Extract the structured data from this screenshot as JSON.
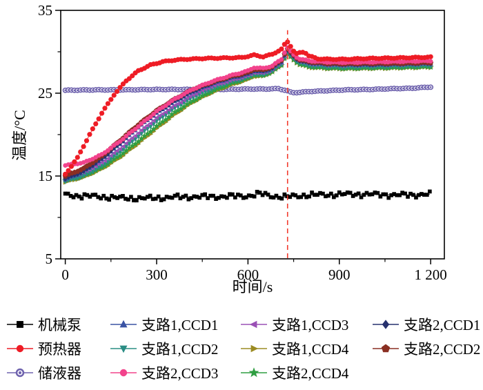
{
  "chart_data": {
    "type": "line",
    "title": "",
    "xlabel": "时间/s",
    "ylabel": "温度/°C",
    "xlim": [
      -15,
      1245
    ],
    "ylim": [
      5,
      35
    ],
    "grid": false,
    "legend_position": "bottom",
    "xticks": {
      "major": [
        0,
        300,
        600,
        900,
        1200
      ],
      "labels": [
        "0",
        "300",
        "600",
        "900",
        "1 200"
      ],
      "minor": [
        150,
        450,
        750,
        1050
      ]
    },
    "yticks": {
      "major": [
        5,
        15,
        25,
        35
      ],
      "labels": [
        "5",
        "15",
        "25",
        "35"
      ],
      "minor": [
        10,
        20,
        30
      ]
    },
    "vline": {
      "x": 730,
      "color": "#f2392c",
      "style": "dashed"
    },
    "series": [
      {
        "key": "pump",
        "name": "机械泵",
        "color": "#000000",
        "marker": "square",
        "points": [
          [
            0,
            12.7
          ],
          [
            60,
            12.6
          ],
          [
            120,
            12.5
          ],
          [
            180,
            12.35
          ],
          [
            240,
            12.3
          ],
          [
            300,
            12.35
          ],
          [
            360,
            12.45
          ],
          [
            420,
            12.5
          ],
          [
            480,
            12.5
          ],
          [
            540,
            12.55
          ],
          [
            600,
            12.6
          ],
          [
            640,
            12.85
          ],
          [
            680,
            12.6
          ],
          [
            720,
            12.45
          ],
          [
            760,
            12.6
          ],
          [
            800,
            12.7
          ],
          [
            860,
            12.75
          ],
          [
            920,
            12.8
          ],
          [
            980,
            12.8
          ],
          [
            1040,
            12.75
          ],
          [
            1100,
            12.7
          ],
          [
            1160,
            12.75
          ],
          [
            1200,
            12.8
          ]
        ]
      },
      {
        "key": "preheater",
        "name": "预热器",
        "color": "#ee1c25",
        "marker": "circle",
        "points": [
          [
            0,
            15.2
          ],
          [
            40,
            17.2
          ],
          [
            80,
            20.0
          ],
          [
            120,
            22.6
          ],
          [
            160,
            24.8
          ],
          [
            200,
            26.5
          ],
          [
            240,
            27.7
          ],
          [
            280,
            28.4
          ],
          [
            320,
            28.8
          ],
          [
            360,
            29.0
          ],
          [
            400,
            29.1
          ],
          [
            460,
            29.2
          ],
          [
            520,
            29.25
          ],
          [
            580,
            29.3
          ],
          [
            620,
            29.6
          ],
          [
            650,
            29.4
          ],
          [
            680,
            29.7
          ],
          [
            710,
            30.3
          ],
          [
            728,
            31.3
          ],
          [
            742,
            30.6
          ],
          [
            756,
            29.7
          ],
          [
            772,
            29.9
          ],
          [
            786,
            30.0
          ],
          [
            800,
            29.5
          ],
          [
            830,
            29.15
          ],
          [
            870,
            29.1
          ],
          [
            920,
            29.1
          ],
          [
            1000,
            29.2
          ],
          [
            1080,
            29.25
          ],
          [
            1140,
            29.3
          ],
          [
            1200,
            29.35
          ]
        ]
      },
      {
        "key": "reservoir",
        "name": "储液器",
        "color": "#6f63ae",
        "marker": "circle-dot",
        "points": [
          [
            0,
            25.35
          ],
          [
            100,
            25.4
          ],
          [
            200,
            25.4
          ],
          [
            300,
            25.45
          ],
          [
            400,
            25.45
          ],
          [
            500,
            25.45
          ],
          [
            600,
            25.5
          ],
          [
            660,
            25.5
          ],
          [
            700,
            25.55
          ],
          [
            728,
            25.3
          ],
          [
            745,
            25.05
          ],
          [
            770,
            25.1
          ],
          [
            800,
            25.2
          ],
          [
            860,
            25.3
          ],
          [
            920,
            25.4
          ],
          [
            1000,
            25.45
          ],
          [
            1080,
            25.55
          ],
          [
            1140,
            25.6
          ],
          [
            1200,
            25.75
          ]
        ]
      },
      {
        "key": "branch1-ccd1",
        "name": "支路1,CCD1",
        "color": "#3a53a4",
        "marker": "triangle-up",
        "points": [
          [
            0,
            14.6
          ],
          [
            60,
            15.5
          ],
          [
            120,
            17.0
          ],
          [
            180,
            18.9
          ],
          [
            240,
            20.9
          ],
          [
            300,
            22.6
          ],
          [
            360,
            24.0
          ],
          [
            420,
            25.2
          ],
          [
            480,
            26.1
          ],
          [
            540,
            26.8
          ],
          [
            600,
            27.3
          ],
          [
            620,
            27.7
          ],
          [
            650,
            27.6
          ],
          [
            680,
            28.0
          ],
          [
            710,
            28.8
          ],
          [
            728,
            30.3
          ],
          [
            745,
            29.6
          ],
          [
            765,
            29.0
          ],
          [
            800,
            28.7
          ],
          [
            860,
            28.5
          ],
          [
            920,
            28.45
          ],
          [
            1000,
            28.45
          ],
          [
            1080,
            28.5
          ],
          [
            1140,
            28.55
          ],
          [
            1200,
            28.6
          ]
        ]
      },
      {
        "key": "branch1-ccd2",
        "name": "支路1,CCD2",
        "color": "#2a8d84",
        "marker": "triangle-down",
        "points": [
          [
            0,
            14.35
          ],
          [
            60,
            15.0
          ],
          [
            120,
            16.2
          ],
          [
            180,
            17.9
          ],
          [
            240,
            19.8
          ],
          [
            300,
            21.6
          ],
          [
            360,
            23.2
          ],
          [
            420,
            24.5
          ],
          [
            480,
            25.5
          ],
          [
            540,
            26.3
          ],
          [
            600,
            26.9
          ],
          [
            620,
            27.3
          ],
          [
            650,
            27.2
          ],
          [
            680,
            27.7
          ],
          [
            710,
            28.5
          ],
          [
            728,
            30.0
          ],
          [
            745,
            29.3
          ],
          [
            765,
            28.7
          ],
          [
            800,
            28.3
          ],
          [
            860,
            28.15
          ],
          [
            920,
            28.1
          ],
          [
            1000,
            28.15
          ],
          [
            1080,
            28.2
          ],
          [
            1140,
            28.25
          ],
          [
            1200,
            28.3
          ]
        ]
      },
      {
        "key": "branch2-ccd3",
        "name": "支路2,CCD3",
        "color": "#f2438c",
        "marker": "circle",
        "points": [
          [
            0,
            16.3
          ],
          [
            60,
            16.6
          ],
          [
            120,
            17.6
          ],
          [
            180,
            19.2
          ],
          [
            240,
            21.0
          ],
          [
            300,
            22.8
          ],
          [
            360,
            24.3
          ],
          [
            420,
            25.5
          ],
          [
            480,
            26.4
          ],
          [
            540,
            27.1
          ],
          [
            600,
            27.7
          ],
          [
            620,
            28.1
          ],
          [
            650,
            28.0
          ],
          [
            680,
            28.3
          ],
          [
            710,
            29.1
          ],
          [
            728,
            30.6
          ],
          [
            745,
            29.8
          ],
          [
            765,
            29.2
          ],
          [
            800,
            28.9
          ],
          [
            860,
            28.75
          ],
          [
            920,
            28.7
          ],
          [
            1000,
            28.75
          ],
          [
            1080,
            28.8
          ],
          [
            1140,
            28.85
          ],
          [
            1200,
            28.9
          ]
        ]
      },
      {
        "key": "branch1-ccd3",
        "name": "支路1,CCD3",
        "color": "#9a50b5",
        "marker": "triangle-left",
        "points": [
          [
            0,
            14.8
          ],
          [
            60,
            15.4
          ],
          [
            120,
            16.6
          ],
          [
            180,
            18.3
          ],
          [
            240,
            20.2
          ],
          [
            300,
            22.0
          ],
          [
            360,
            23.5
          ],
          [
            420,
            24.8
          ],
          [
            480,
            25.8
          ],
          [
            540,
            26.5
          ],
          [
            600,
            27.1
          ],
          [
            620,
            27.5
          ],
          [
            650,
            27.4
          ],
          [
            680,
            27.9
          ],
          [
            710,
            28.7
          ],
          [
            728,
            30.2
          ],
          [
            745,
            29.5
          ],
          [
            765,
            28.9
          ],
          [
            800,
            28.55
          ],
          [
            860,
            28.4
          ],
          [
            920,
            28.35
          ],
          [
            1000,
            28.4
          ],
          [
            1080,
            28.45
          ],
          [
            1140,
            28.5
          ],
          [
            1200,
            28.55
          ]
        ]
      },
      {
        "key": "branch1-ccd4",
        "name": "支路1,CCD4",
        "color": "#9b8b22",
        "marker": "triangle-right",
        "points": [
          [
            0,
            14.25
          ],
          [
            60,
            14.8
          ],
          [
            120,
            15.8
          ],
          [
            180,
            17.2
          ],
          [
            240,
            18.9
          ],
          [
            300,
            20.7
          ],
          [
            360,
            22.4
          ],
          [
            420,
            23.9
          ],
          [
            480,
            25.0
          ],
          [
            540,
            25.9
          ],
          [
            600,
            26.6
          ],
          [
            620,
            27.0
          ],
          [
            650,
            27.0
          ],
          [
            680,
            27.5
          ],
          [
            710,
            28.3
          ],
          [
            728,
            29.8
          ],
          [
            745,
            29.1
          ],
          [
            765,
            28.5
          ],
          [
            800,
            28.1
          ],
          [
            860,
            27.95
          ],
          [
            920,
            27.9
          ],
          [
            1000,
            27.95
          ],
          [
            1080,
            28.0
          ],
          [
            1140,
            28.05
          ],
          [
            1200,
            28.1
          ]
        ]
      },
      {
        "key": "branch2-ccd4",
        "name": "支路2,CCD4",
        "color": "#2f9e41",
        "marker": "star",
        "points": [
          [
            0,
            14.5
          ],
          [
            60,
            15.0
          ],
          [
            120,
            16.0
          ],
          [
            180,
            17.5
          ],
          [
            240,
            19.2
          ],
          [
            300,
            21.0
          ],
          [
            360,
            22.7
          ],
          [
            420,
            24.1
          ],
          [
            480,
            25.2
          ],
          [
            540,
            26.1
          ],
          [
            600,
            26.8
          ],
          [
            620,
            27.2
          ],
          [
            650,
            27.1
          ],
          [
            680,
            27.6
          ],
          [
            710,
            28.4
          ],
          [
            728,
            29.9
          ],
          [
            745,
            29.2
          ],
          [
            765,
            28.6
          ],
          [
            800,
            28.2
          ],
          [
            860,
            28.05
          ],
          [
            920,
            28.0
          ],
          [
            1000,
            28.05
          ],
          [
            1080,
            28.1
          ],
          [
            1140,
            28.15
          ],
          [
            1200,
            28.2
          ]
        ]
      },
      {
        "key": "branch2-ccd1",
        "name": "支路2,CCD1",
        "color": "#27316e",
        "marker": "diamond",
        "points": [
          [
            0,
            14.7
          ],
          [
            60,
            15.6
          ],
          [
            120,
            17.1
          ],
          [
            180,
            19.0
          ],
          [
            240,
            21.0
          ],
          [
            300,
            22.7
          ],
          [
            360,
            24.1
          ],
          [
            420,
            25.3
          ],
          [
            480,
            26.2
          ],
          [
            540,
            26.9
          ],
          [
            600,
            27.4
          ],
          [
            620,
            27.8
          ],
          [
            650,
            27.7
          ],
          [
            680,
            28.1
          ],
          [
            710,
            28.9
          ],
          [
            728,
            30.3
          ],
          [
            745,
            29.6
          ],
          [
            765,
            29.0
          ],
          [
            800,
            28.7
          ],
          [
            860,
            28.55
          ],
          [
            920,
            28.5
          ],
          [
            1000,
            28.5
          ],
          [
            1080,
            28.55
          ],
          [
            1140,
            28.6
          ],
          [
            1200,
            28.65
          ]
        ]
      },
      {
        "key": "branch2-ccd2",
        "name": "支路2,CCD2",
        "color": "#8a2f22",
        "marker": "pentagon",
        "points": [
          [
            0,
            15.0
          ],
          [
            60,
            15.9
          ],
          [
            120,
            17.4
          ],
          [
            180,
            19.3
          ],
          [
            240,
            21.2
          ],
          [
            300,
            22.9
          ],
          [
            360,
            24.3
          ],
          [
            420,
            25.5
          ],
          [
            480,
            26.3
          ],
          [
            540,
            27.0
          ],
          [
            600,
            27.5
          ],
          [
            620,
            27.9
          ],
          [
            650,
            27.8
          ],
          [
            680,
            28.2
          ],
          [
            710,
            29.0
          ],
          [
            728,
            30.4
          ],
          [
            745,
            29.7
          ],
          [
            765,
            29.1
          ],
          [
            800,
            28.8
          ],
          [
            860,
            28.6
          ],
          [
            920,
            28.55
          ],
          [
            1000,
            28.6
          ],
          [
            1080,
            28.6
          ],
          [
            1140,
            28.65
          ],
          [
            1200,
            28.7
          ]
        ]
      }
    ]
  }
}
